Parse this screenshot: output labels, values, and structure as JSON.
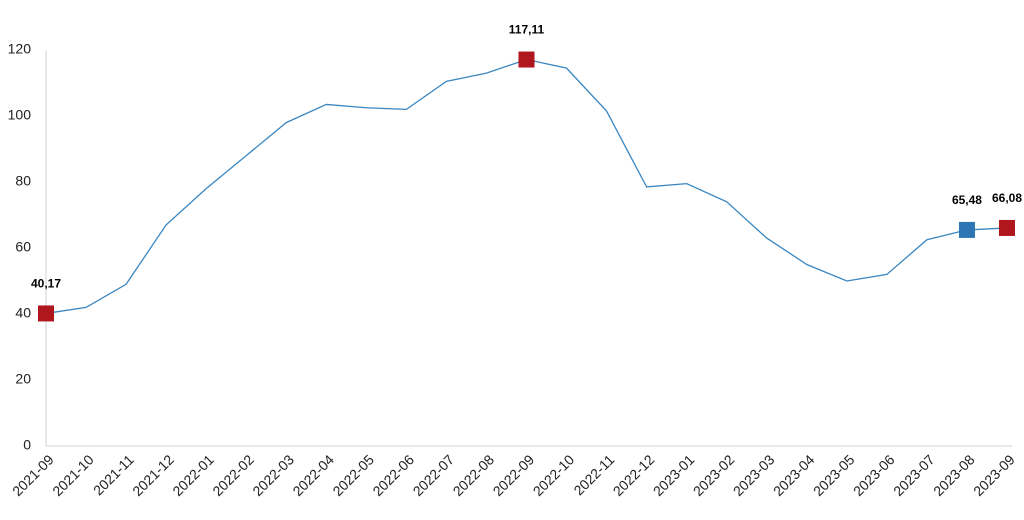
{
  "chart_data": {
    "type": "line",
    "categories": [
      "2021-09",
      "2021-10",
      "2021-11",
      "2021-12",
      "2022-01",
      "2022-02",
      "2022-03",
      "2022-04",
      "2022-05",
      "2022-06",
      "2022-07",
      "2022-08",
      "2022-09",
      "2022-10",
      "2022-11",
      "2022-12",
      "2023-01",
      "2023-02",
      "2023-03",
      "2023-04",
      "2023-05",
      "2023-06",
      "2023-07",
      "2023-08",
      "2023-09"
    ],
    "values": [
      40.17,
      42,
      49,
      67,
      78,
      88,
      98,
      103.5,
      102.5,
      102,
      110.5,
      113,
      117.11,
      114.5,
      101.5,
      78.5,
      79.5,
      74,
      63,
      55,
      50,
      52,
      62.5,
      65.48,
      66.08
    ],
    "value_labels": [
      "40,17",
      null,
      null,
      null,
      null,
      null,
      null,
      null,
      null,
      null,
      null,
      null,
      "117,11",
      null,
      null,
      null,
      null,
      null,
      null,
      null,
      null,
      null,
      null,
      "65,48",
      "66,08"
    ],
    "marker_colors": [
      "#b0161e",
      null,
      null,
      null,
      null,
      null,
      null,
      null,
      null,
      null,
      null,
      null,
      "#b0161e",
      null,
      null,
      null,
      null,
      null,
      null,
      null,
      null,
      null,
      null,
      "#2e75b6",
      "#b0161e"
    ],
    "color": "#3a86c0",
    "ylim": [
      0,
      120
    ],
    "yticks": [
      0,
      20,
      40,
      60,
      80,
      100,
      120
    ],
    "grid": false
  }
}
